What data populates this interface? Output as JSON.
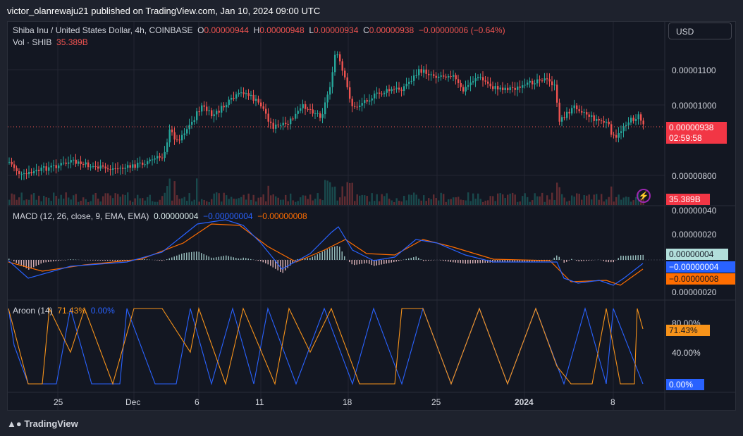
{
  "publisher_line": "victor_olanrewaju21 published on TradingView.com, Jan 10, 2024 09:00 UTC",
  "symbol": {
    "title": "Shiba Inu / United States Dollar, 4h, COINBASE",
    "o_label": "O",
    "o_value": "0.00000944",
    "h_label": "H",
    "h_value": "0.00000948",
    "l_label": "L",
    "l_value": "0.00000934",
    "c_label": "C",
    "c_value": "0.00000938",
    "change": "−0.00000006 (−0.64%)"
  },
  "volume": {
    "label": "Vol · SHIB",
    "value": "35.389B"
  },
  "currency_button": "USD",
  "price_axis": {
    "ticks": [
      "0.00001100",
      "0.00001000",
      "0.00000800"
    ],
    "last_price": "0.00000938",
    "countdown": "02:59:58",
    "volume_tag": "35.389B"
  },
  "macd": {
    "label": "MACD (12, 26, close, 9, EMA, EMA)",
    "histogram": "0.00000004",
    "macd_line": "−0.00000004",
    "signal_line": "−0.00000008",
    "ticks": [
      "0.00000040",
      "0.00000020",
      "0.00000020"
    ],
    "tag_hist": "0.00000004",
    "tag_macd": "−0.00000004",
    "tag_signal": "−0.00000008"
  },
  "aroon": {
    "label": "Aroon (14)",
    "up": "71.43%",
    "down": "0.00%",
    "ticks": [
      "80.00%",
      "40.00%"
    ],
    "tag_up": "71.43%",
    "tag_down": "0.00%"
  },
  "time_axis": [
    "25",
    "Dec",
    "6",
    "11",
    "18",
    "25",
    "2024",
    "8"
  ],
  "footer": "TradingView",
  "colors": {
    "up": "#26a69a",
    "down": "#ef5350",
    "macd": "#2962ff",
    "signal": "#ff6d00",
    "aroon_up": "#f7931a",
    "aroon_down": "#2962ff",
    "bg": "#131722"
  }
}
